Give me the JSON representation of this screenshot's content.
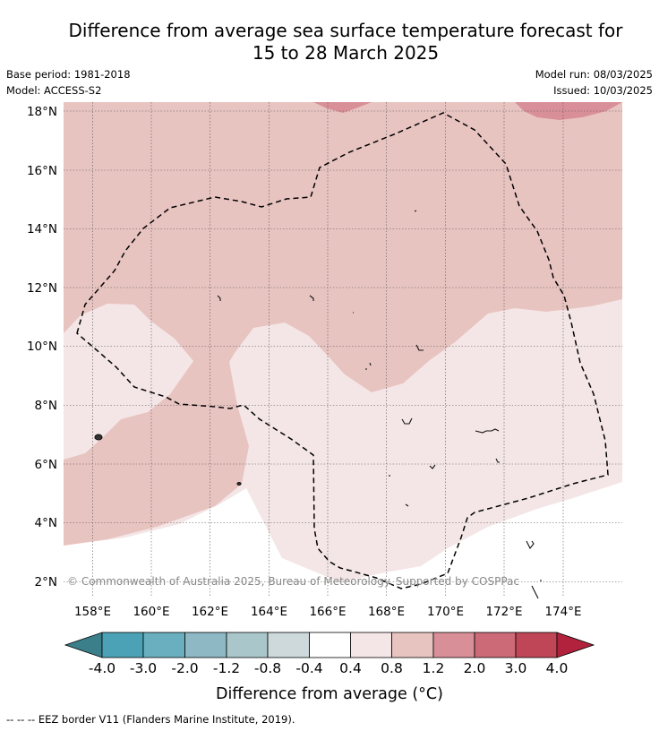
{
  "title_line1": "Difference from average sea surface temperature forecast for",
  "title_line2": "15 to 28 March 2025",
  "base_period": "Base period: 1981-2018",
  "model": "Model: ACCESS-S2",
  "model_run": "Model run: 08/03/2025",
  "issued": "Issued: 10/03/2025",
  "map": {
    "lon_range": [
      157,
      176
    ],
    "lat_range": [
      1.4,
      18.3
    ],
    "lon_ticks": [
      "158°E",
      "160°E",
      "162°E",
      "164°E",
      "166°E",
      "168°E",
      "170°E",
      "172°E",
      "174°E"
    ],
    "lat_ticks": [
      "2°N",
      "4°N",
      "6°N",
      "8°N",
      "10°N",
      "12°N",
      "14°N",
      "16°N",
      "18°N"
    ],
    "copyright": "© Commonwealth of Australia 2025, Bureau of Meteorology. Supported by COSPPac",
    "eez_border_style": "dashed black"
  },
  "colorbar": {
    "tick_labels": [
      "-4.0",
      "-3.0",
      "-2.0",
      "-1.2",
      "-0.8",
      "-0.4",
      "0.4",
      "0.8",
      "1.2",
      "2.0",
      "3.0",
      "4.0"
    ],
    "colors": [
      "#3a7f8a",
      "#4ba2b6",
      "#6aafbf",
      "#8eb8c4",
      "#a9c7cb",
      "#cdd9db",
      "#ffffff",
      "#f4e6e6",
      "#e8c4c1",
      "#d98f98",
      "#cc6a77",
      "#bf4657",
      "#b2223d"
    ],
    "title": "Difference from average (°C)"
  },
  "footnote": "-- -- -- EEZ border V11 (Flanders Marine Institute, 2019)."
}
